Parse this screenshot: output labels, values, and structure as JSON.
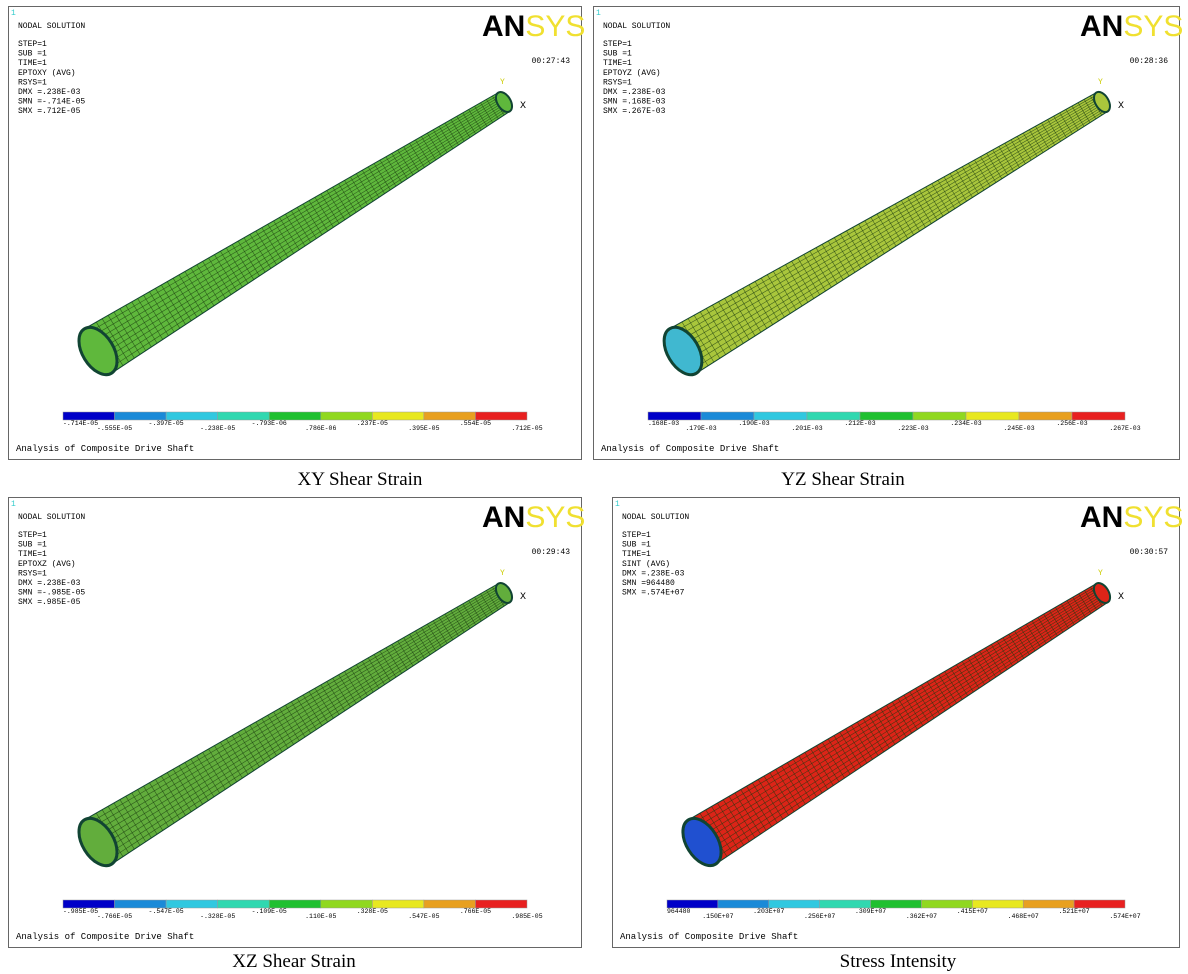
{
  "panels": [
    {
      "index": "1",
      "header": "NODAL SOLUTION",
      "info": [
        "STEP=1",
        "SUB =1",
        "TIME=1",
        "EPTOXY   (AVG)",
        "RSYS=1",
        "DMX =.238E-03",
        "SMN =-.714E-05",
        "SMX =.712E-05"
      ],
      "time": "00:27:43",
      "logo_left": "AN",
      "logo_right": "SYS",
      "axis_y": "Y",
      "axis_x": "X",
      "legend_labels": [
        "-.714E-05",
        "-.555E-05",
        "-.397E-05",
        "-.238E-05",
        "-.793E-06",
        ".786E-06",
        ".237E-05",
        ".395E-05",
        ".554E-05",
        ".712E-05"
      ],
      "footer": "Analysis of Composite Drive Shaft",
      "caption": "XY Shear Strain"
    },
    {
      "index": "1",
      "header": "NODAL SOLUTION",
      "info": [
        "STEP=1",
        "SUB =1",
        "TIME=1",
        "EPTOYZ   (AVG)",
        "RSYS=1",
        "DMX =.238E-03",
        "SMN =.168E-03",
        "SMX =.267E-03"
      ],
      "time": "00:28:36",
      "logo_left": "AN",
      "logo_right": "SYS",
      "axis_y": "Y",
      "axis_x": "X",
      "legend_labels": [
        ".168E-03",
        ".179E-03",
        ".190E-03",
        ".201E-03",
        ".212E-03",
        ".223E-03",
        ".234E-03",
        ".245E-03",
        ".256E-03",
        ".267E-03"
      ],
      "footer": "Analysis of Composite Drive Shaft",
      "caption": "YZ Shear Strain"
    },
    {
      "index": "1",
      "header": "NODAL SOLUTION",
      "info": [
        "STEP=1",
        "SUB =1",
        "TIME=1",
        "EPTOXZ   (AVG)",
        "RSYS=1",
        "DMX =.238E-03",
        "SMN =-.985E-05",
        "SMX =.985E-05"
      ],
      "time": "00:29:43",
      "logo_left": "AN",
      "logo_right": "SYS",
      "axis_y": "Y",
      "axis_x": "X",
      "legend_labels": [
        "-.985E-05",
        "-.766E-05",
        "-.547E-05",
        "-.328E-05",
        "-.109E-05",
        ".110E-05",
        ".328E-05",
        ".547E-05",
        ".766E-05",
        ".985E-05"
      ],
      "footer": "Analysis of Composite Drive Shaft",
      "caption": "XZ Shear Strain"
    },
    {
      "index": "1",
      "header": "NODAL SOLUTION",
      "info": [
        "STEP=1",
        "SUB =1",
        "TIME=1",
        "SINT     (AVG)",
        "DMX =.238E-03",
        "SMN =964480",
        "SMX =.574E+07"
      ],
      "time": "00:30:57",
      "logo_left": "AN",
      "logo_right": "SYS",
      "axis_y": "Y",
      "axis_x": "X",
      "legend_labels": [
        "964480",
        ".150E+07",
        ".203E+07",
        ".256E+07",
        ".309E+07",
        ".362E+07",
        ".415E+07",
        ".468E+07",
        ".521E+07",
        ".574E+07"
      ],
      "footer": "Analysis of Composite Drive Shaft",
      "caption": "Stress Intensity"
    }
  ]
}
